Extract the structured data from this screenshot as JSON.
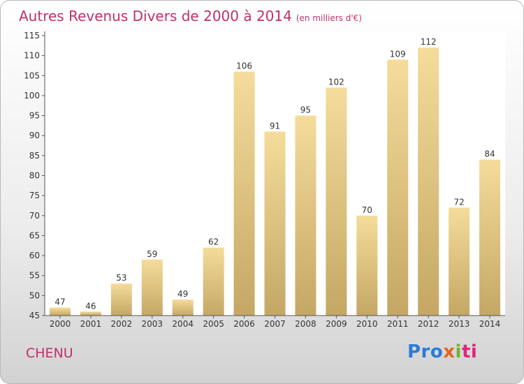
{
  "header": {
    "title": "Autres Revenus Divers de 2000 à 2014",
    "unit": "(en milliers d'€)"
  },
  "footer": {
    "commune": "CHENU",
    "logo": "Proxiti"
  },
  "colors": {
    "title": "#c0306b",
    "bar_light": "#f5dc9a",
    "bar_dark": "#c4a765",
    "plot_bg": "#ffffff"
  },
  "chart_data": {
    "type": "bar",
    "title": "Autres Revenus Divers de 2000 à 2014",
    "subtitle": "(en milliers d'€)",
    "categories": [
      "2000",
      "2001",
      "2002",
      "2003",
      "2004",
      "2005",
      "2006",
      "2007",
      "2008",
      "2009",
      "2010",
      "2011",
      "2012",
      "2013",
      "2014"
    ],
    "values": [
      47,
      46,
      53,
      59,
      49,
      62,
      106,
      91,
      95,
      102,
      70,
      109,
      112,
      72,
      84
    ],
    "xlabel": "",
    "ylabel": "",
    "ylim": [
      45,
      115
    ],
    "yticks": [
      45,
      50,
      55,
      60,
      65,
      70,
      75,
      80,
      85,
      90,
      95,
      100,
      105,
      110,
      115
    ],
    "grid": false,
    "data_labels": true,
    "legend": "none"
  }
}
